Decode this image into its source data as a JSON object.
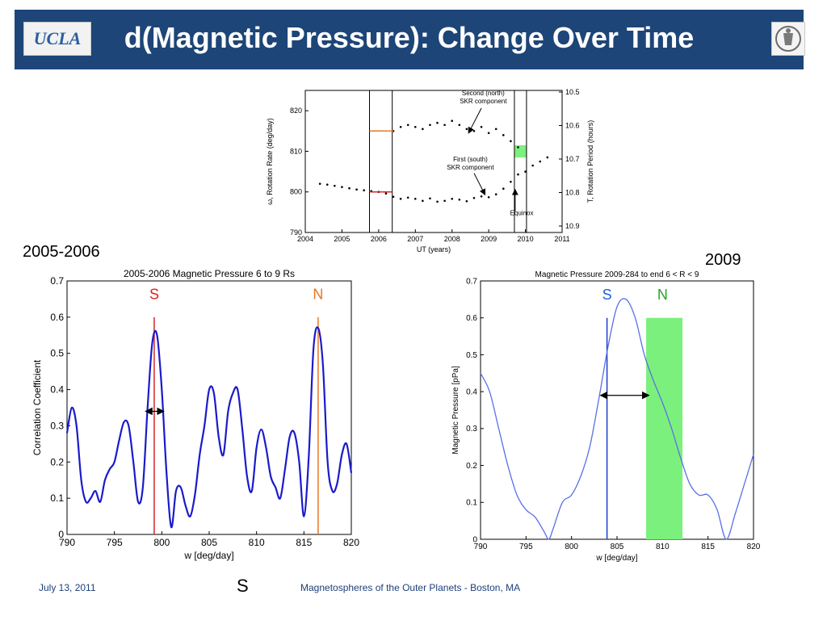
{
  "header": {
    "title": "d(Magnetic Pressure): Change Over Time",
    "logo_text": "UCLA",
    "bg_color": "#1d4578"
  },
  "labels": {
    "left_period": "2005-2006",
    "right_period": "2009"
  },
  "footer": {
    "date": "July 13, 2011",
    "conference": "Magnetospheres of the Outer Planets - Boston, MA",
    "slide_mark": "S"
  },
  "chart_data": [
    {
      "id": "top",
      "type": "scatter",
      "title": "",
      "xlabel": "UT (years)",
      "ylabel": "ω, Rotation Rate (deg/day)",
      "y2label": "T, Rotation Period (hours)",
      "xlim": [
        2004,
        2011
      ],
      "ylim": [
        790,
        825
      ],
      "xticks": [
        "2004",
        "2005",
        "2006",
        "2007",
        "2008",
        "2009",
        "2010",
        "2011"
      ],
      "yticks": [
        "790",
        "800",
        "810",
        "820"
      ],
      "y2ticks": [
        "10.5",
        "10.6",
        "10.7",
        "10.8",
        "10.9"
      ],
      "annotations": [
        "Second (north) SKR component",
        "First (south) SKR component",
        "Equinox"
      ],
      "vlines": [
        2005.75,
        2006.37,
        2009.7,
        2010.03
      ],
      "highlight_color": "#7cf07c",
      "series": [
        {
          "x": [
            2006.4,
            2006.6,
            2006.8,
            2007.0,
            2007.2,
            2007.4,
            2007.6,
            2007.8,
            2008.0,
            2008.2,
            2008.4,
            2008.6,
            2008.8,
            2009.0,
            2009.2,
            2009.4,
            2009.6,
            2009.8
          ],
          "values": [
            815,
            816,
            816.5,
            816,
            815.5,
            816.5,
            817,
            816.5,
            817.5,
            816.5,
            815.5,
            815,
            816,
            814.5,
            815.5,
            814,
            812.5,
            811
          ]
        },
        {
          "x": [
            2004.4,
            2004.6,
            2004.8,
            2005.0,
            2005.2,
            2005.4,
            2005.6,
            2005.8,
            2006.0,
            2006.2,
            2006.4,
            2006.6,
            2006.8,
            2007.0,
            2007.2,
            2007.4,
            2007.6,
            2007.8,
            2008.0,
            2008.2,
            2008.4,
            2008.6,
            2008.8,
            2009.0,
            2009.2,
            2009.4,
            2009.6,
            2009.8,
            2010.0,
            2010.2,
            2010.4,
            2010.6
          ],
          "values": [
            802,
            801.8,
            801.5,
            801.2,
            800.9,
            800.6,
            800.4,
            800.2,
            800,
            799.6,
            798.8,
            798.3,
            798.6,
            798.3,
            797.8,
            798.4,
            797.6,
            797.8,
            798.3,
            798.1,
            797.7,
            798.5,
            798.9,
            798.7,
            799.4,
            800.8,
            802.5,
            804.3,
            805,
            806.5,
            807.5,
            808.5
          ]
        }
      ],
      "markers": [
        {
          "x0": 2005.75,
          "x1": 2006.4,
          "y": 815,
          "color": "#e87722"
        },
        {
          "x0": 2005.75,
          "x1": 2006.37,
          "y": 800,
          "color": "#d62728"
        }
      ]
    },
    {
      "id": "left",
      "type": "line",
      "title": "2005-2006 Magnetic Pressure 6 to 9 Rs",
      "xlabel": "w [deg/day]",
      "ylabel": "Correlation Coefficient",
      "xlim": [
        790,
        820
      ],
      "ylim": [
        0,
        0.7
      ],
      "xticks": [
        "790",
        "795",
        "800",
        "805",
        "810",
        "815",
        "820"
      ],
      "yticks": [
        "0",
        "0.1",
        "0.2",
        "0.3",
        "0.4",
        "0.5",
        "0.6",
        "0.7"
      ],
      "line_color": "#1a1acc",
      "annotations": [
        {
          "text": "S",
          "color": "#e0201e",
          "x": 799.2
        },
        {
          "text": "N",
          "color": "#e87722",
          "x": 816.5
        }
      ],
      "vlines": [
        {
          "x": 799.2,
          "color": "#d62728"
        },
        {
          "x": 816.5,
          "color": "#e87722"
        }
      ],
      "arrow": {
        "x0": 798.3,
        "x1": 800.2,
        "y": 0.34
      },
      "x": [
        790,
        790.5,
        791,
        791.5,
        792,
        792.5,
        793,
        793.5,
        794,
        794.5,
        795,
        795.5,
        796,
        796.5,
        797,
        797.5,
        798,
        798.5,
        799,
        799.5,
        800,
        800.5,
        801,
        801.5,
        802,
        802.5,
        803,
        803.5,
        804,
        804.5,
        805,
        805.5,
        806,
        806.5,
        807,
        807.5,
        808,
        808.5,
        809,
        809.5,
        810,
        810.5,
        811,
        811.5,
        812,
        812.5,
        813,
        813.5,
        814,
        814.5,
        815,
        815.5,
        816,
        816.5,
        817,
        817.5,
        818,
        818.5,
        819,
        819.5,
        820
      ],
      "values": [
        0.28,
        0.35,
        0.3,
        0.15,
        0.09,
        0.1,
        0.12,
        0.09,
        0.15,
        0.18,
        0.2,
        0.26,
        0.31,
        0.3,
        0.2,
        0.09,
        0.13,
        0.35,
        0.53,
        0.55,
        0.4,
        0.17,
        0.02,
        0.12,
        0.13,
        0.08,
        0.05,
        0.11,
        0.22,
        0.3,
        0.4,
        0.39,
        0.27,
        0.22,
        0.34,
        0.39,
        0.4,
        0.29,
        0.16,
        0.12,
        0.24,
        0.29,
        0.24,
        0.16,
        0.13,
        0.1,
        0.18,
        0.27,
        0.28,
        0.2,
        0.05,
        0.21,
        0.51,
        0.57,
        0.47,
        0.2,
        0.12,
        0.14,
        0.22,
        0.25,
        0.17
      ]
    },
    {
      "id": "right",
      "type": "line",
      "title": "Magnetic Pressure 2009-284 to end 6 < R < 9",
      "xlabel": "w [deg/day]",
      "ylabel": "Magnetic Pressure [pPa]",
      "xlim": [
        790,
        820
      ],
      "ylim": [
        0,
        0.7
      ],
      "xticks": [
        "790",
        "795",
        "800",
        "805",
        "810",
        "815",
        "820"
      ],
      "yticks": [
        "0",
        "0.1",
        "0.2",
        "0.3",
        "0.4",
        "0.5",
        "0.6",
        "0.7"
      ],
      "line_color": "#5b6fe8",
      "annotations": [
        {
          "text": "S",
          "color": "#1f5fd0",
          "x": 803.9
        },
        {
          "text": "N",
          "color": "#22a52a",
          "x": 810
        }
      ],
      "vlines": [
        {
          "x": 803.9,
          "color": "#1a3ccf"
        }
      ],
      "band": {
        "x0": 808.2,
        "x1": 812.2,
        "y_top": 0.6,
        "color": "#7cf07c"
      },
      "arrow": {
        "x0": 803.2,
        "x1": 808.5,
        "y": 0.39
      },
      "x": [
        790,
        791,
        792,
        793,
        794,
        795,
        796,
        797,
        797.5,
        798,
        799,
        800,
        801,
        802,
        803,
        804,
        805,
        806,
        807,
        808,
        809,
        810,
        811,
        812,
        813,
        814,
        815,
        816,
        817,
        818,
        819,
        820
      ],
      "values": [
        0.45,
        0.4,
        0.3,
        0.2,
        0.12,
        0.08,
        0.06,
        0.02,
        0.0,
        0.03,
        0.1,
        0.12,
        0.17,
        0.25,
        0.38,
        0.52,
        0.63,
        0.65,
        0.6,
        0.5,
        0.43,
        0.37,
        0.3,
        0.22,
        0.15,
        0.12,
        0.12,
        0.08,
        0.0,
        0.07,
        0.15,
        0.23
      ]
    }
  ]
}
